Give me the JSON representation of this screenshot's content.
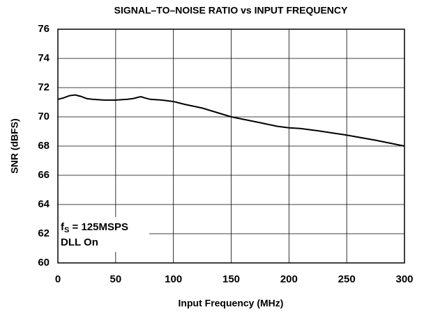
{
  "chart_data": {
    "type": "line",
    "title": "SIGNAL–TO–NOISE RATIO vs INPUT FREQUENCY",
    "xlabel": "Input Frequency (MHz)",
    "ylabel": "SNR (dBFS)",
    "annotation": {
      "symbol": "f",
      "subscript": "S",
      "rest": " = 125MSPS",
      "line2": "DLL On"
    },
    "x": [
      0,
      5,
      10,
      15,
      20,
      25,
      30,
      40,
      50,
      60,
      65,
      70,
      72,
      75,
      80,
      90,
      100,
      110,
      125,
      150,
      175,
      190,
      200,
      210,
      225,
      250,
      275,
      300
    ],
    "series": [
      {
        "name": "SNR",
        "color": "#000000",
        "values": [
          71.2,
          71.3,
          71.45,
          71.5,
          71.4,
          71.25,
          71.2,
          71.15,
          71.15,
          71.2,
          71.25,
          71.35,
          71.38,
          71.3,
          71.2,
          71.15,
          71.05,
          70.85,
          70.6,
          70.0,
          69.6,
          69.35,
          69.25,
          69.2,
          69.05,
          68.75,
          68.4,
          68.0
        ]
      }
    ],
    "xlim": [
      0,
      300
    ],
    "xticks": [
      0,
      50,
      100,
      150,
      200,
      250,
      300
    ],
    "ylim": [
      60,
      76
    ],
    "yticks": [
      60,
      62,
      64,
      66,
      68,
      70,
      72,
      74,
      76
    ],
    "grid": true
  }
}
